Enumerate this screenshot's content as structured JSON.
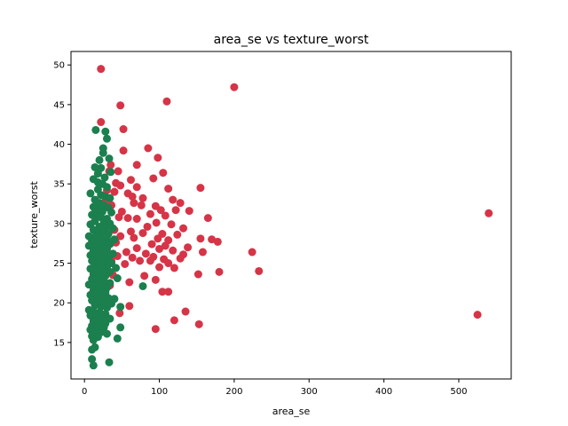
{
  "chart_data": {
    "type": "scatter",
    "title": "area_se vs texture_worst",
    "xlabel": "area_se",
    "ylabel": "texture_worst",
    "xlim": [
      -18,
      570
    ],
    "ylim": [
      10.4,
      51.7
    ],
    "xticks": [
      0,
      100,
      200,
      300,
      400,
      500
    ],
    "yticks": [
      15,
      20,
      25,
      30,
      35,
      40,
      45,
      50
    ],
    "grid": false,
    "legend": "none",
    "series": [
      {
        "color": "#d63447",
        "points": [
          [
            22,
            49.5
          ],
          [
            200,
            47.2
          ],
          [
            110,
            45.4
          ],
          [
            48,
            44.9
          ],
          [
            22,
            42.8
          ],
          [
            52,
            41.9
          ],
          [
            85,
            39.5
          ],
          [
            52,
            39.2
          ],
          [
            98,
            38.3
          ],
          [
            35,
            37.4
          ],
          [
            70,
            37.4
          ],
          [
            33,
            36.6
          ],
          [
            45,
            36.6
          ],
          [
            105,
            36.4
          ],
          [
            92,
            35.7
          ],
          [
            62,
            35.5
          ],
          [
            42,
            35.1
          ],
          [
            48,
            34.8
          ],
          [
            70,
            34.6
          ],
          [
            155,
            34.5
          ],
          [
            112,
            34.4
          ],
          [
            30,
            34.2
          ],
          [
            40,
            34.0
          ],
          [
            58,
            33.8
          ],
          [
            64,
            33.4
          ],
          [
            78,
            33.2
          ],
          [
            118,
            33.0
          ],
          [
            28,
            32.9
          ],
          [
            66,
            32.6
          ],
          [
            128,
            32.6
          ],
          [
            36,
            32.3
          ],
          [
            76,
            32.3
          ],
          [
            95,
            32.2
          ],
          [
            102,
            31.7
          ],
          [
            122,
            31.7
          ],
          [
            140,
            31.6
          ],
          [
            50,
            31.5
          ],
          [
            88,
            31.2
          ],
          [
            108,
            31.0
          ],
          [
            46,
            30.8
          ],
          [
            58,
            30.7
          ],
          [
            70,
            30.6
          ],
          [
            165,
            30.7
          ],
          [
            96,
            30.1
          ],
          [
            116,
            29.9
          ],
          [
            32,
            29.7
          ],
          [
            84,
            29.6
          ],
          [
            132,
            29.4
          ],
          [
            40,
            29.2
          ],
          [
            62,
            29.0
          ],
          [
            78,
            28.8
          ],
          [
            104,
            28.7
          ],
          [
            124,
            28.6
          ],
          [
            48,
            28.4
          ],
          [
            66,
            28.2
          ],
          [
            98,
            28.1
          ],
          [
            112,
            27.9
          ],
          [
            155,
            28.1
          ],
          [
            170,
            28.0
          ],
          [
            178,
            27.7
          ],
          [
            42,
            27.6
          ],
          [
            90,
            27.4
          ],
          [
            108,
            27.2
          ],
          [
            138,
            27.0
          ],
          [
            30,
            26.9
          ],
          [
            70,
            26.9
          ],
          [
            100,
            26.8
          ],
          [
            118,
            26.6
          ],
          [
            224,
            26.4
          ],
          [
            56,
            26.4
          ],
          [
            82,
            26.2
          ],
          [
            132,
            26.1
          ],
          [
            158,
            26.4
          ],
          [
            26,
            26.0
          ],
          [
            44,
            25.9
          ],
          [
            64,
            25.7
          ],
          [
            92,
            25.8
          ],
          [
            106,
            25.5
          ],
          [
            128,
            25.6
          ],
          [
            36,
            25.3
          ],
          [
            74,
            25.3
          ],
          [
            88,
            25.3
          ],
          [
            112,
            25.0
          ],
          [
            54,
            24.9
          ],
          [
            20,
            24.8
          ],
          [
            100,
            24.5
          ],
          [
            120,
            24.4
          ],
          [
            233,
            24.0
          ],
          [
            180,
            23.9
          ],
          [
            152,
            23.6
          ],
          [
            38,
            23.5
          ],
          [
            80,
            23.4
          ],
          [
            95,
            22.9
          ],
          [
            60,
            22.6
          ],
          [
            34,
            22.2
          ],
          [
            104,
            21.4
          ],
          [
            112,
            21.4
          ],
          [
            28,
            20.3
          ],
          [
            60,
            19.6
          ],
          [
            135,
            18.9
          ],
          [
            47,
            18.7
          ],
          [
            120,
            17.8
          ],
          [
            153,
            17.3
          ],
          [
            95,
            16.7
          ],
          [
            525,
            18.5
          ],
          [
            540,
            31.3
          ]
        ]
      },
      {
        "color": "#1b7f4e",
        "points": [
          [
            15,
            41.8
          ],
          [
            28,
            41.6
          ],
          [
            30,
            40.7
          ],
          [
            25,
            38.9
          ],
          [
            20,
            38.0
          ],
          [
            33,
            38.2
          ],
          [
            14,
            37.1
          ],
          [
            22,
            37.0
          ],
          [
            35,
            36.5
          ],
          [
            18,
            36.3
          ],
          [
            27,
            35.8
          ],
          [
            12,
            35.6
          ],
          [
            24,
            35.0
          ],
          [
            30,
            34.6
          ],
          [
            18,
            34.3
          ],
          [
            8,
            33.8
          ],
          [
            22,
            33.6
          ],
          [
            28,
            33.4
          ],
          [
            14,
            33.0
          ],
          [
            34,
            33.2
          ],
          [
            20,
            32.6
          ],
          [
            26,
            32.3
          ],
          [
            12,
            32.1
          ],
          [
            32,
            32.0
          ],
          [
            18,
            31.7
          ],
          [
            24,
            31.5
          ],
          [
            36,
            31.4
          ],
          [
            10,
            31.1
          ],
          [
            16,
            30.9
          ],
          [
            22,
            30.8
          ],
          [
            30,
            30.6
          ],
          [
            14,
            30.3
          ],
          [
            26,
            30.2
          ],
          [
            34,
            30.0
          ],
          [
            8,
            29.9
          ],
          [
            20,
            29.6
          ],
          [
            28,
            29.5
          ],
          [
            38,
            29.4
          ],
          [
            12,
            29.2
          ],
          [
            18,
            29.0
          ],
          [
            24,
            28.9
          ],
          [
            32,
            28.7
          ],
          [
            6,
            28.4
          ],
          [
            14,
            28.3
          ],
          [
            22,
            28.2
          ],
          [
            30,
            28.1
          ],
          [
            40,
            28.0
          ],
          [
            10,
            27.8
          ],
          [
            18,
            27.6
          ],
          [
            26,
            27.5
          ],
          [
            34,
            27.4
          ],
          [
            6,
            27.2
          ],
          [
            14,
            27.0
          ],
          [
            22,
            26.9
          ],
          [
            30,
            26.8
          ],
          [
            12,
            26.5
          ],
          [
            20,
            26.4
          ],
          [
            28,
            26.3
          ],
          [
            38,
            26.2
          ],
          [
            8,
            26.0
          ],
          [
            16,
            25.8
          ],
          [
            24,
            25.7
          ],
          [
            32,
            25.6
          ],
          [
            10,
            25.3
          ],
          [
            18,
            25.2
          ],
          [
            26,
            25.1
          ],
          [
            36,
            25.0
          ],
          [
            14,
            24.8
          ],
          [
            22,
            24.6
          ],
          [
            30,
            24.5
          ],
          [
            8,
            24.3
          ],
          [
            16,
            24.1
          ],
          [
            24,
            24.0
          ],
          [
            34,
            23.9
          ],
          [
            12,
            23.6
          ],
          [
            20,
            23.5
          ],
          [
            28,
            23.4
          ],
          [
            44,
            23.1
          ],
          [
            10,
            23.0
          ],
          [
            18,
            22.8
          ],
          [
            26,
            22.7
          ],
          [
            34,
            22.5
          ],
          [
            6,
            22.3
          ],
          [
            14,
            22.2
          ],
          [
            22,
            22.0
          ],
          [
            30,
            21.9
          ],
          [
            12,
            21.6
          ],
          [
            20,
            21.4
          ],
          [
            28,
            21.3
          ],
          [
            8,
            21.0
          ],
          [
            16,
            20.9
          ],
          [
            24,
            20.7
          ],
          [
            32,
            20.6
          ],
          [
            10,
            20.3
          ],
          [
            18,
            20.2
          ],
          [
            26,
            20.1
          ],
          [
            36,
            19.9
          ],
          [
            14,
            19.7
          ],
          [
            22,
            19.5
          ],
          [
            30,
            19.4
          ],
          [
            48,
            19.5
          ],
          [
            6,
            19.1
          ],
          [
            12,
            18.9
          ],
          [
            20,
            18.8
          ],
          [
            28,
            18.6
          ],
          [
            8,
            18.4
          ],
          [
            16,
            18.2
          ],
          [
            24,
            18.1
          ],
          [
            34,
            18.0
          ],
          [
            12,
            17.7
          ],
          [
            20,
            17.5
          ],
          [
            28,
            17.4
          ],
          [
            10,
            17.1
          ],
          [
            18,
            17.0
          ],
          [
            26,
            16.9
          ],
          [
            48,
            16.9
          ],
          [
            8,
            16.6
          ],
          [
            14,
            16.4
          ],
          [
            22,
            16.3
          ],
          [
            30,
            16.1
          ],
          [
            10,
            15.8
          ],
          [
            18,
            15.7
          ],
          [
            44,
            15.5
          ],
          [
            12,
            15.3
          ],
          [
            14,
            14.4
          ],
          [
            10,
            14.1
          ],
          [
            10,
            12.9
          ],
          [
            12,
            12.1
          ],
          [
            33,
            12.5
          ],
          [
            78,
            22.1
          ],
          [
            14,
            31.9
          ],
          [
            18,
            35.2
          ],
          [
            25,
            39.5
          ],
          [
            40,
            20.5
          ],
          [
            42,
            24.4
          ]
        ]
      }
    ]
  }
}
